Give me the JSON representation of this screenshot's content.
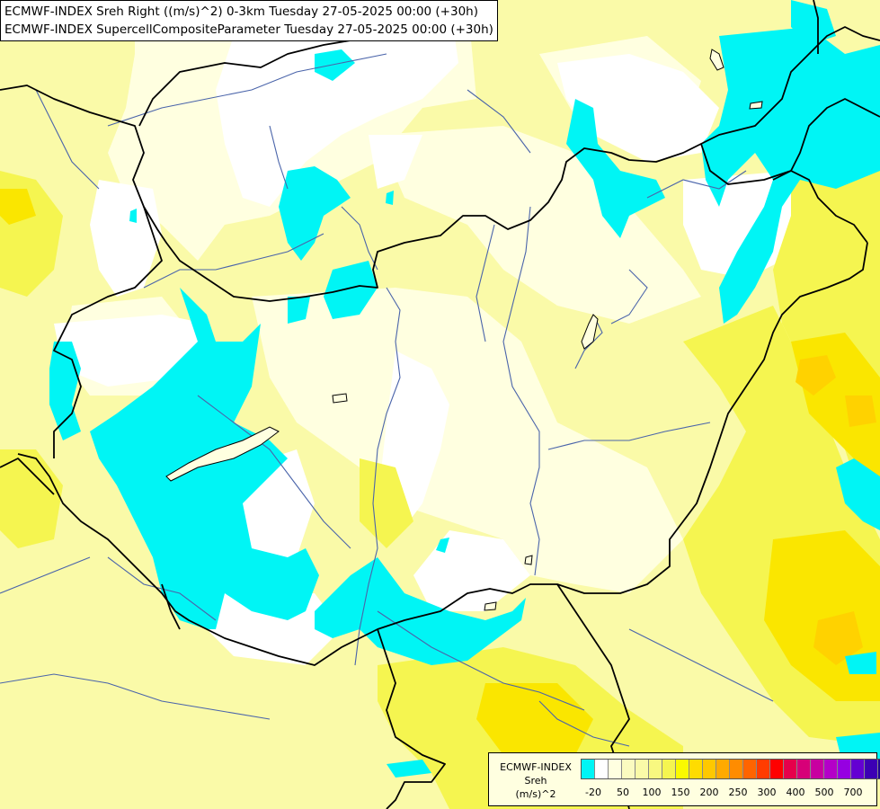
{
  "title": {
    "line1": "ECMWF-INDEX Sreh Right ((m/s)^2) 0-3km Tuesday 27-05-2025 00:00 (+30h)",
    "line2": "ECMWF-INDEX SupercellCompositeParameter Tuesday 27-05-2025 00:00 (+30h)"
  },
  "legend": {
    "line1": "ECMWF-INDEX",
    "line2": "Sreh",
    "line3": "(m/s)^2",
    "colors": [
      "#00f5f5",
      "#ffffff",
      "#ffffe0",
      "#fbfbc0",
      "#fafaa8",
      "#f8f880",
      "#f5f550",
      "#fafa00",
      "#ffdc00",
      "#ffc800",
      "#ffaa00",
      "#ff8c00",
      "#ff6400",
      "#ff3c00",
      "#ff0000",
      "#e6004b",
      "#d70078",
      "#c800a0",
      "#b400c8",
      "#9600e1",
      "#6400d2",
      "#3c00b4",
      "#1e0096",
      "#000078"
    ],
    "tick_labels": [
      "-20",
      "50",
      "100",
      "150",
      "200",
      "250",
      "300",
      "400",
      "500",
      "700"
    ]
  },
  "colors": {
    "land": "#fafaa8",
    "low": "#ffffe0",
    "white": "#ffffff",
    "cyan": "#00f5f5",
    "yellow": "#f5f550",
    "strong_yellow": "#fafa00",
    "orange": "#ffdc00",
    "border": "#000000",
    "river": "#4a64aa"
  }
}
